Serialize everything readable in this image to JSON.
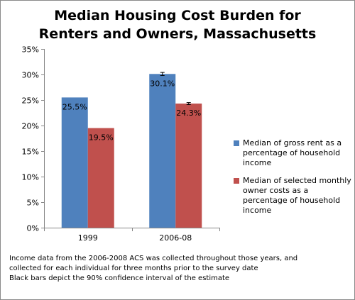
{
  "chart_data": {
    "type": "bar",
    "title": "Median Housing Cost Burden for\nRenters and Owners, Massachusetts",
    "xlabel": "",
    "ylabel": "",
    "categories": [
      "1999",
      "2006-08"
    ],
    "ylim": [
      0,
      35
    ],
    "y_ticks": [
      0,
      5,
      10,
      15,
      20,
      25,
      30,
      35
    ],
    "y_tick_labels": [
      "0%",
      "5%",
      "10%",
      "15%",
      "20%",
      "25%",
      "30%",
      "35%"
    ],
    "grid": false,
    "legend_position": "right",
    "series": [
      {
        "name": "Median of gross rent as a percentage of household income",
        "values": [
          25.5,
          30.1
        ],
        "data_labels": [
          "25.5%",
          "30.1%"
        ],
        "error": [
          null,
          0.3
        ],
        "color": "#4f81bd"
      },
      {
        "name": "Median of selected monthly owner costs as a percentage of household income",
        "values": [
          19.5,
          24.3
        ],
        "data_labels": [
          "19.5%",
          "24.3%"
        ],
        "error": [
          null,
          0.2
        ],
        "color": "#c0504d"
      }
    ]
  },
  "footnote": {
    "lines": [
      "Income data from the 2006-2008 ACS was collected throughout those years, and",
      "collected for each individual for three months prior to the survey date",
      "Black bars depict the 90% confidence interval of the estimate"
    ]
  },
  "colors": {
    "axis": "#868686",
    "error_bar": "#000000",
    "frame": "#8a8a8a"
  }
}
